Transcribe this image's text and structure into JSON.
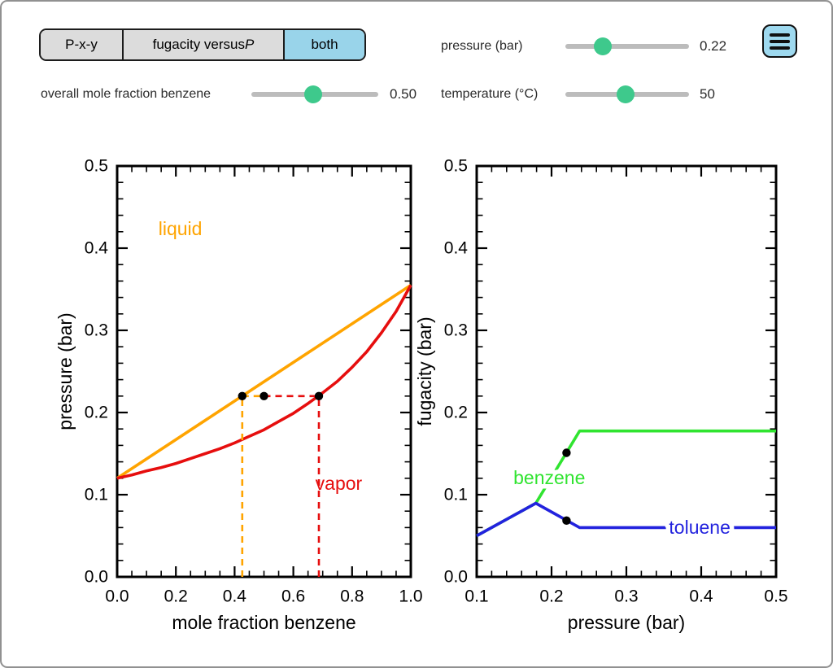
{
  "tabs": [
    {
      "label": "P-x-y",
      "italic": "",
      "selected": false
    },
    {
      "label": "fugacity versus ",
      "italic": "P",
      "selected": false
    },
    {
      "label": "both",
      "italic": "",
      "selected": true
    }
  ],
  "sliders": {
    "overall_mole_fraction": {
      "label": "overall mole fraction benzene",
      "value": "0.50",
      "fraction": 0.49
    },
    "pressure": {
      "label": "pressure (bar)",
      "value": "0.22",
      "fraction": 0.3
    },
    "temperature": {
      "label": "temperature (°C)",
      "value": "50",
      "fraction": 0.49
    }
  },
  "menu_button": {
    "icon": "hamburger-icon"
  },
  "colors": {
    "slider_knob": "#3ec98c",
    "slider_track": "#bcbcbc",
    "tab_selected_bg": "#99d4ea",
    "tab_bg": "#dcdcdc",
    "menu_button_bg": "#9ed9ef",
    "liquid_curve": "#FFA400",
    "vapor_curve": "#E60E0E",
    "benzene_curve": "#30E430",
    "toluene_curve": "#2222DE",
    "point": "#000000"
  },
  "chart_data": [
    {
      "type": "line",
      "title": "",
      "xlabel": "mole fraction benzene",
      "ylabel": "pressure (bar)",
      "xlim": [
        0,
        1
      ],
      "ylim": [
        0,
        0.5
      ],
      "xticks": [
        0,
        0.2,
        0.4,
        0.6,
        0.8,
        1
      ],
      "xtick_labels": [
        "0.0",
        "0.2",
        "0.4",
        "0.6",
        "0.8",
        "1.0"
      ],
      "yticks": [
        0,
        0.1,
        0.2,
        0.3,
        0.4,
        0.5
      ],
      "ytick_labels": [
        "0.0",
        "0.1",
        "0.2",
        "0.3",
        "0.4",
        "0.5"
      ],
      "x_minor_step": 0.05,
      "y_minor_step": 0.02,
      "grid": false,
      "series": [
        {
          "name": "liquid-bubble-line",
          "color": "#FFA400",
          "x": [
            0,
            1
          ],
          "y": [
            0.12,
            0.355
          ]
        },
        {
          "name": "vapor-dew-line",
          "color": "#E60E0E",
          "x": [
            0,
            0.05,
            0.1,
            0.15,
            0.2,
            0.25,
            0.3,
            0.35,
            0.4,
            0.45,
            0.5,
            0.55,
            0.6,
            0.65,
            0.7,
            0.75,
            0.8,
            0.85,
            0.9,
            0.95,
            1
          ],
          "y": [
            0.12,
            0.124,
            0.129,
            0.133,
            0.138,
            0.144,
            0.15,
            0.156,
            0.163,
            0.171,
            0.179,
            0.189,
            0.199,
            0.211,
            0.224,
            0.238,
            0.255,
            0.274,
            0.297,
            0.323,
            0.355
          ]
        }
      ],
      "guide_lines": [
        {
          "name": "liquid-composition-dashed",
          "color": "#FFA400",
          "x": [
            0.426,
            0.426
          ],
          "y": [
            0,
            0.22
          ]
        },
        {
          "name": "tie-line-liquid-half-dashed",
          "color": "#FFA400",
          "x": [
            0.426,
            0.5
          ],
          "y": [
            0.22,
            0.22
          ]
        },
        {
          "name": "tie-line-vapor-half-dashed",
          "color": "#E60E0E",
          "x": [
            0.5,
            0.687
          ],
          "y": [
            0.22,
            0.22
          ]
        },
        {
          "name": "vapor-composition-dashed",
          "color": "#E60E0E",
          "x": [
            0.687,
            0.687
          ],
          "y": [
            0,
            0.22
          ]
        }
      ],
      "points": [
        {
          "x": 0.426,
          "y": 0.22,
          "label": "liquid-phase-point"
        },
        {
          "x": 0.5,
          "y": 0.22,
          "label": "overall-composition-point"
        },
        {
          "x": 0.687,
          "y": 0.22,
          "label": "vapor-phase-point"
        }
      ],
      "annotations": [
        {
          "text": "liquid",
          "color": "#FFA400",
          "x": 0.215,
          "y": 0.424,
          "anchor": "middle",
          "halo": false
        },
        {
          "text": "vapor",
          "color": "#E60E0E",
          "x": 0.675,
          "y": 0.114,
          "anchor": "start",
          "halo": false
        }
      ]
    },
    {
      "type": "line",
      "title": "",
      "xlabel": "pressure (bar)",
      "ylabel": "fugacity (bar)",
      "xlim": [
        0.1,
        0.5
      ],
      "ylim": [
        0,
        0.5
      ],
      "xticks": [
        0.1,
        0.2,
        0.3,
        0.4,
        0.5
      ],
      "xtick_labels": [
        "0.1",
        "0.2",
        "0.3",
        "0.4",
        "0.5"
      ],
      "yticks": [
        0,
        0.1,
        0.2,
        0.3,
        0.4,
        0.5
      ],
      "ytick_labels": [
        "0.0",
        "0.1",
        "0.2",
        "0.3",
        "0.4",
        "0.5"
      ],
      "x_minor_step": 0.02,
      "y_minor_step": 0.02,
      "grid": false,
      "series": [
        {
          "name": "benzene-fugacity",
          "color": "#30E430",
          "x": [
            0.1,
            0.179,
            0.2375,
            0.5
          ],
          "y": [
            0.05,
            0.0896,
            0.1775,
            0.1775
          ]
        },
        {
          "name": "toluene-fugacity",
          "color": "#2222DE",
          "x": [
            0.1,
            0.179,
            0.2375,
            0.5
          ],
          "y": [
            0.05,
            0.0896,
            0.06,
            0.06
          ]
        }
      ],
      "guide_lines": [],
      "points": [
        {
          "x": 0.22,
          "y": 0.151,
          "label": "benzene-fugacity-point"
        },
        {
          "x": 0.22,
          "y": 0.0685,
          "label": "toluene-fugacity-point"
        }
      ],
      "annotations": [
        {
          "text": "benzene",
          "color": "#30E430",
          "x": 0.197,
          "y": 0.121,
          "anchor": "middle",
          "halo": true
        },
        {
          "text": "toluene",
          "color": "#2222DE",
          "x": 0.398,
          "y": 0.0605,
          "anchor": "middle",
          "halo": true
        }
      ]
    }
  ]
}
